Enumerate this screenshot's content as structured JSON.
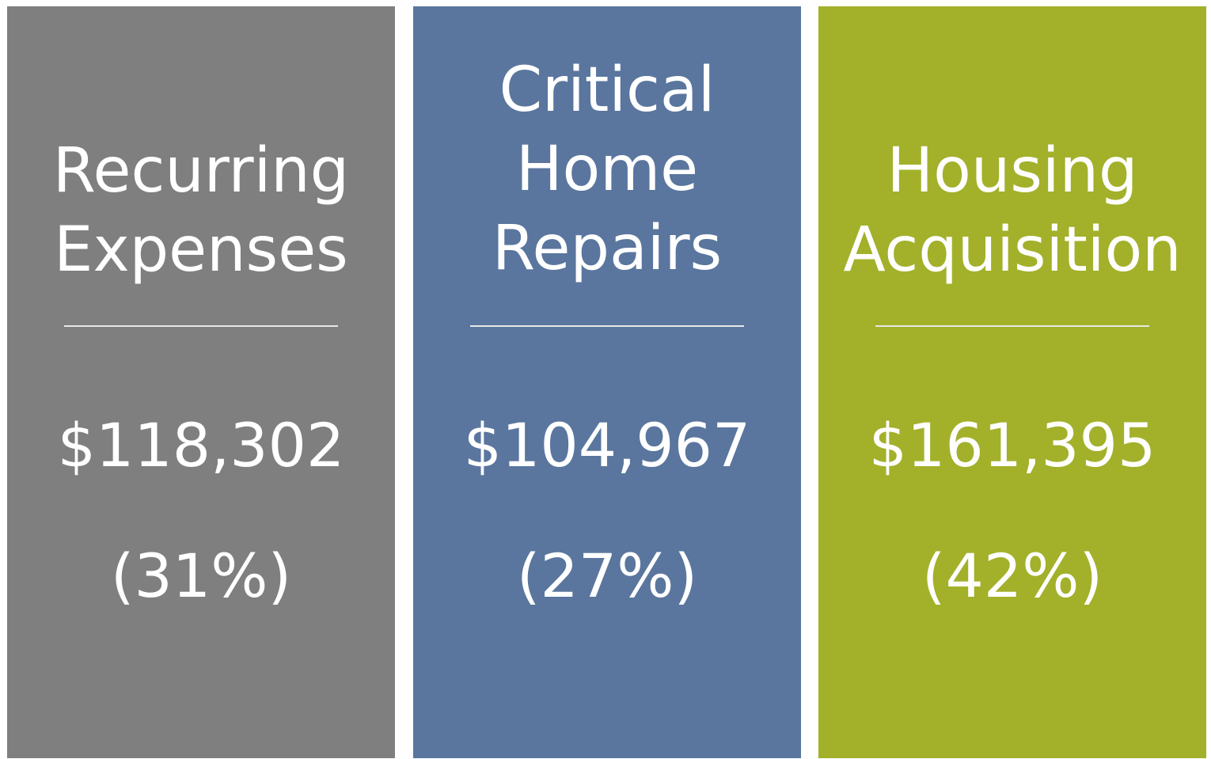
{
  "cards": [
    {
      "title_lines": [
        "Recurring",
        "Expenses"
      ],
      "amount": "$118,302",
      "share": "(31%)"
    },
    {
      "title_lines": [
        "Critical",
        "Home",
        "Repairs"
      ],
      "amount": "$104,967",
      "share": "(27%)"
    },
    {
      "title_lines": [
        "Housing",
        "Acquisition"
      ],
      "amount": "$161,395",
      "share": "(42%)"
    }
  ]
}
